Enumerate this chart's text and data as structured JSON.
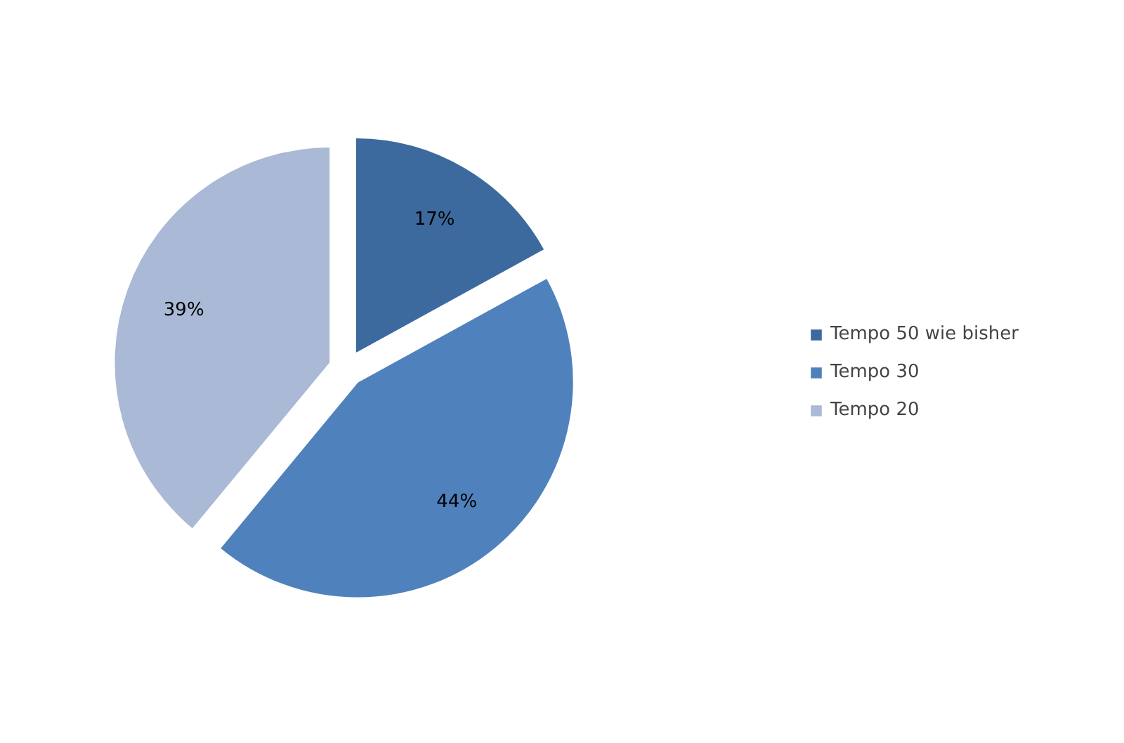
{
  "chart_data": {
    "type": "pie",
    "categories": [
      "Tempo 50 wie bisher",
      "Tempo 30",
      "Tempo 20"
    ],
    "values": [
      17,
      44,
      39
    ],
    "colors": [
      "#3d6a9e",
      "#4f81bd",
      "#a9b9d6"
    ],
    "value_labels": [
      "17%",
      "44%",
      "39%"
    ],
    "legend": "right"
  }
}
